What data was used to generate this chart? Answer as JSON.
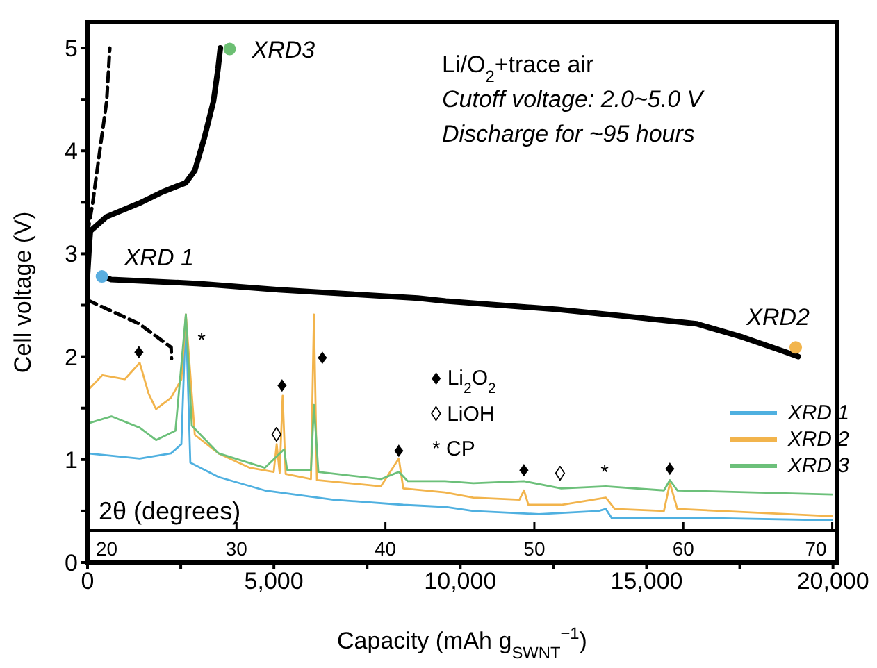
{
  "chart_data": {
    "type": "line",
    "xlabel": "Capacity (mAh g$_{SWNT}$$^{−1}$)",
    "ylabel": "Cell voltage (V)",
    "x2label": "2θ (degrees)",
    "xlim": [
      0,
      20100
    ],
    "xticks": [
      0,
      {
        "value": 2500,
        "label": null
      },
      {
        "value": 5000,
        "label": "5,000"
      },
      {
        "value": 7500,
        "label": null
      },
      {
        "value": 10000,
        "label": "10,000"
      },
      {
        "value": 12500,
        "label": null
      },
      {
        "value": 15000,
        "label": "15,000"
      },
      {
        "value": 17500,
        "label": null
      },
      {
        "value": 20000,
        "label": "20,000"
      }
    ],
    "ylim": [
      0,
      5.25
    ],
    "yticks": [
      0,
      {
        "value": 0.5,
        "label": null
      },
      1,
      {
        "value": 1.5,
        "label": null
      },
      2,
      {
        "value": 2.5,
        "label": null
      },
      3,
      {
        "value": 3.5,
        "label": null
      },
      4,
      {
        "value": 4.5,
        "label": null
      },
      5
    ],
    "x2lim": [
      20,
      70.3
    ],
    "x2ticks": [
      20,
      30,
      40,
      50,
      60,
      70
    ],
    "ref_lines": [
      {
        "axis": "y",
        "value": 0.31,
        "color": "#000000"
      }
    ],
    "legend": "bottom right",
    "line_style": "solid",
    "marker": "none",
    "series": [
      {
        "color": "#000000",
        "x": [
          0,
          50,
          75,
          512,
          1383,
          2007,
          2636,
          2879,
          3129,
          3377,
          3502,
          3563
        ],
        "values": [
          2.8,
          3.1,
          3.22,
          3.36,
          3.49,
          3.6,
          3.69,
          3.81,
          4.12,
          4.48,
          4.8,
          5.0
        ]
      },
      {
        "color": "#000000",
        "x": [
          386,
          636,
          3000,
          5120,
          8860,
          9607,
          12598,
          14500,
          16336,
          17570,
          18692,
          19065
        ],
        "values": [
          2.78,
          2.75,
          2.71,
          2.65,
          2.57,
          2.54,
          2.46,
          2.39,
          2.32,
          2.19,
          2.05,
          2.0
        ]
      },
      {
        "color": "#000000",
        "line_style": "dashed",
        "x": [
          0,
          137,
          324,
          512,
          598
        ],
        "values": [
          3.2,
          3.49,
          3.99,
          4.48,
          5.0
        ]
      },
      {
        "color": "#000000",
        "line_style": "dashed",
        "x": [
          0,
          1383,
          2243,
          2254
        ],
        "values": [
          2.55,
          2.32,
          2.09,
          1.98
        ]
      },
      {
        "type": "scatter",
        "marker": "circle",
        "x": [
          386,
          19000,
          3813
        ],
        "values": [
          2.78,
          2.09,
          4.99
        ],
        "colors": [
          "#5aaee0",
          "#f2b54d",
          "#6cbf73"
        ]
      },
      {
        "name": "XRD 1",
        "color": "#4fb0e0",
        "axis": "x2",
        "x": [
          20,
          23.5,
          25.6,
          26.3,
          26.6,
          26.9,
          28.8,
          31.9,
          36.5,
          41.2,
          44,
          45.9,
          50.3,
          54.3,
          54.8,
          55.2,
          62.7,
          70
        ],
        "values": [
          1.06,
          1.01,
          1.06,
          1.15,
          2.41,
          0.97,
          0.83,
          0.7,
          0.61,
          0.56,
          0.54,
          0.5,
          0.47,
          0.5,
          0.52,
          0.43,
          0.43,
          0.41
        ]
      },
      {
        "name": "XRD 2",
        "color": "#f2b44c",
        "axis": "x2",
        "x": [
          20,
          21,
          22.5,
          23.5,
          24.1,
          24.6,
          25.6,
          26.3,
          26.6,
          27.2,
          28.8,
          30.9,
          32.5,
          32.7,
          32.9,
          33.1,
          33.3,
          35,
          35.2,
          35.4,
          39.7,
          40.9,
          41.2,
          44,
          45.9,
          49,
          49.3,
          49.6,
          51.8,
          54.8,
          55.4,
          58.7,
          59.1,
          59.6,
          70
        ],
        "values": [
          1.67,
          1.82,
          1.78,
          1.94,
          1.64,
          1.49,
          1.6,
          1.78,
          2.41,
          1.24,
          1.06,
          0.92,
          0.88,
          1.15,
          0.87,
          1.62,
          0.86,
          0.81,
          2.41,
          0.8,
          0.74,
          1.01,
          0.72,
          0.68,
          0.63,
          0.61,
          0.7,
          0.56,
          0.56,
          0.63,
          0.52,
          0.5,
          0.77,
          0.52,
          0.45
        ]
      },
      {
        "name": "XRD 3",
        "color": "#6cc07a",
        "axis": "x2",
        "x": [
          20,
          21.6,
          23.5,
          24.6,
          25.9,
          26.6,
          27,
          28.8,
          31.9,
          33.2,
          33.4,
          35,
          35.2,
          35.5,
          39.7,
          40.9,
          41.5,
          44,
          45.9,
          49.3,
          51.8,
          54.8,
          58.7,
          59.1,
          59.6,
          70
        ],
        "values": [
          1.35,
          1.42,
          1.31,
          1.19,
          1.28,
          2.41,
          1.33,
          1.06,
          0.92,
          1.1,
          0.9,
          0.9,
          1.53,
          0.88,
          0.81,
          0.88,
          0.79,
          0.79,
          0.77,
          0.79,
          0.72,
          0.74,
          0.7,
          0.8,
          0.7,
          0.66
        ]
      }
    ],
    "annotations": [
      "Li/O$_{2}$+trace air",
      "Cutoff voltage: 2.0~5.0 V",
      "Discharge for ~95 hours",
      "♦ Li$_{2}$O$_{2}$",
      "◊ LiOH",
      "* CP",
      "♦",
      "*",
      "♦",
      "◊",
      "♦",
      "♦",
      "♦",
      "◊",
      "*",
      "♦",
      {
        "text": "XRD 1",
        "x": 386,
        "y": 2.78
      },
      {
        "text": "XRD2",
        "x": 19000,
        "y": 2.09
      },
      {
        "text": "XRD3",
        "x": 3813,
        "y": 4.99
      }
    ]
  }
}
